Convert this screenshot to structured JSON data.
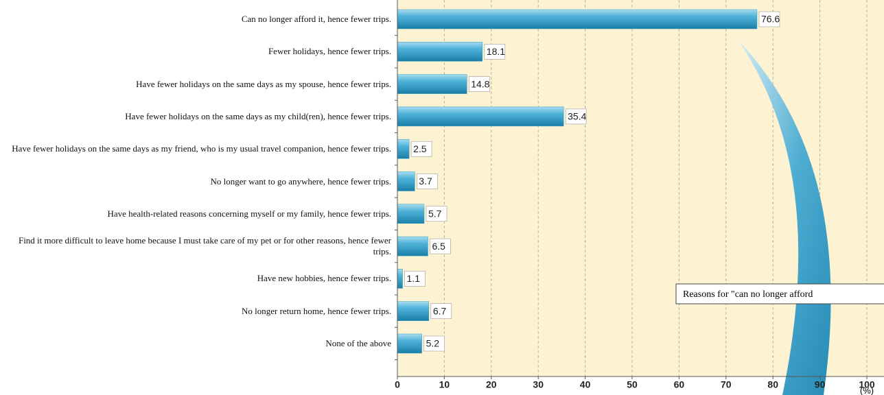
{
  "chart_data": {
    "type": "hbar",
    "categories": [
      "Can no longer afford it, hence fewer trips.",
      "Fewer holidays, hence fewer trips.",
      "Have fewer holidays on the same days as my spouse, hence fewer trips.",
      "Have fewer holidays on the same days as my child(ren), hence fewer trips.",
      "Have fewer holidays on the same days as my friend, who is my usual travel companion, hence fewer trips.",
      "No longer want to go anywhere, hence fewer trips.",
      "Have health-related reasons concerning myself or my family, hence fewer trips.",
      "Find it more difficult to leave home because I must take care of my pet or for other reasons, hence fewer trips.",
      "Have new hobbies, hence fewer trips.",
      "No longer return home, hence fewer trips.",
      "None of the above"
    ],
    "values": [
      76.6,
      18.1,
      14.8,
      35.4,
      2.5,
      3.7,
      5.7,
      6.5,
      1.1,
      6.7,
      5.2
    ],
    "color": "#2a9ac4",
    "xlim": [
      0,
      100
    ],
    "xticks": [
      0,
      10,
      20,
      30,
      40,
      50,
      60,
      70,
      80,
      90,
      100
    ],
    "x_unit": "(%)",
    "grid": true,
    "annotation": "Reasons for \"can no longer afford"
  }
}
